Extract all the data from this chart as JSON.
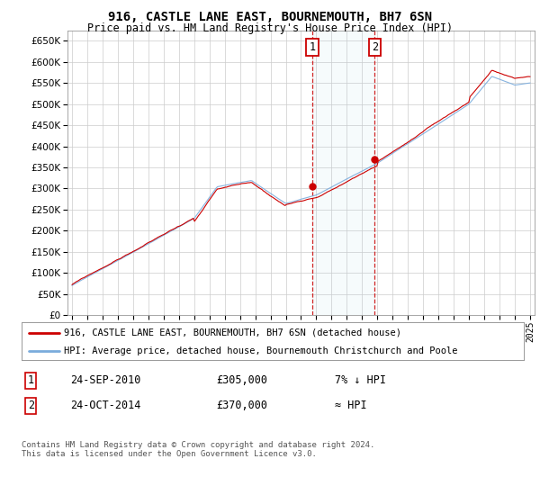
{
  "title": "916, CASTLE LANE EAST, BOURNEMOUTH, BH7 6SN",
  "subtitle": "Price paid vs. HM Land Registry's House Price Index (HPI)",
  "ylim": [
    0,
    675000
  ],
  "yticks": [
    0,
    50000,
    100000,
    150000,
    200000,
    250000,
    300000,
    350000,
    400000,
    450000,
    500000,
    550000,
    600000,
    650000
  ],
  "hpi_color": "#7aabdc",
  "price_color": "#cc0000",
  "sale1_price": 305000,
  "sale2_price": 370000,
  "sale1_year": 2010.75,
  "sale2_year": 2014.83,
  "sale1_label": "1",
  "sale2_label": "2",
  "sale1_date_str": "24-SEP-2010",
  "sale2_date_str": "24-OCT-2014",
  "sale1_vs_hpi": "7% ↓ HPI",
  "sale2_vs_hpi": "≈ HPI",
  "legend_line1": "916, CASTLE LANE EAST, BOURNEMOUTH, BH7 6SN (detached house)",
  "legend_line2": "HPI: Average price, detached house, Bournemouth Christchurch and Poole",
  "footer": "Contains HM Land Registry data © Crown copyright and database right 2024.\nThis data is licensed under the Open Government Licence v3.0.",
  "background_color": "#ffffff",
  "grid_color": "#cccccc",
  "start_year": 1995,
  "end_year": 2025
}
